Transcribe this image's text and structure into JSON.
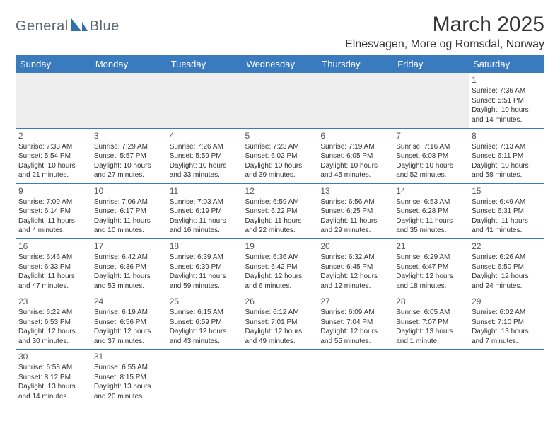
{
  "logo": {
    "brand_left": "General",
    "brand_right": "Blue",
    "text_color": "#5a6770",
    "icon_color": "#2f6fab"
  },
  "title": "March 2025",
  "location": "Elnesvagen, More og Romsdal, Norway",
  "header_bg": "#3a7bbf",
  "days": [
    "Sunday",
    "Monday",
    "Tuesday",
    "Wednesday",
    "Thursday",
    "Friday",
    "Saturday"
  ],
  "startOffset": 6,
  "cells": [
    {
      "n": 1,
      "sr": "7:36 AM",
      "ss": "5:51 PM",
      "dl": "10 hours and 14 minutes."
    },
    {
      "n": 2,
      "sr": "7:33 AM",
      "ss": "5:54 PM",
      "dl": "10 hours and 21 minutes."
    },
    {
      "n": 3,
      "sr": "7:29 AM",
      "ss": "5:57 PM",
      "dl": "10 hours and 27 minutes."
    },
    {
      "n": 4,
      "sr": "7:26 AM",
      "ss": "5:59 PM",
      "dl": "10 hours and 33 minutes."
    },
    {
      "n": 5,
      "sr": "7:23 AM",
      "ss": "6:02 PM",
      "dl": "10 hours and 39 minutes."
    },
    {
      "n": 6,
      "sr": "7:19 AM",
      "ss": "6:05 PM",
      "dl": "10 hours and 45 minutes."
    },
    {
      "n": 7,
      "sr": "7:16 AM",
      "ss": "6:08 PM",
      "dl": "10 hours and 52 minutes."
    },
    {
      "n": 8,
      "sr": "7:13 AM",
      "ss": "6:11 PM",
      "dl": "10 hours and 58 minutes."
    },
    {
      "n": 9,
      "sr": "7:09 AM",
      "ss": "6:14 PM",
      "dl": "11 hours and 4 minutes."
    },
    {
      "n": 10,
      "sr": "7:06 AM",
      "ss": "6:17 PM",
      "dl": "11 hours and 10 minutes."
    },
    {
      "n": 11,
      "sr": "7:03 AM",
      "ss": "6:19 PM",
      "dl": "11 hours and 16 minutes."
    },
    {
      "n": 12,
      "sr": "6:59 AM",
      "ss": "6:22 PM",
      "dl": "11 hours and 22 minutes."
    },
    {
      "n": 13,
      "sr": "6:56 AM",
      "ss": "6:25 PM",
      "dl": "11 hours and 29 minutes."
    },
    {
      "n": 14,
      "sr": "6:53 AM",
      "ss": "6:28 PM",
      "dl": "11 hours and 35 minutes."
    },
    {
      "n": 15,
      "sr": "6:49 AM",
      "ss": "6:31 PM",
      "dl": "11 hours and 41 minutes."
    },
    {
      "n": 16,
      "sr": "6:46 AM",
      "ss": "6:33 PM",
      "dl": "11 hours and 47 minutes."
    },
    {
      "n": 17,
      "sr": "6:42 AM",
      "ss": "6:36 PM",
      "dl": "11 hours and 53 minutes."
    },
    {
      "n": 18,
      "sr": "6:39 AM",
      "ss": "6:39 PM",
      "dl": "11 hours and 59 minutes."
    },
    {
      "n": 19,
      "sr": "6:36 AM",
      "ss": "6:42 PM",
      "dl": "12 hours and 6 minutes."
    },
    {
      "n": 20,
      "sr": "6:32 AM",
      "ss": "6:45 PM",
      "dl": "12 hours and 12 minutes."
    },
    {
      "n": 21,
      "sr": "6:29 AM",
      "ss": "6:47 PM",
      "dl": "12 hours and 18 minutes."
    },
    {
      "n": 22,
      "sr": "6:26 AM",
      "ss": "6:50 PM",
      "dl": "12 hours and 24 minutes."
    },
    {
      "n": 23,
      "sr": "6:22 AM",
      "ss": "6:53 PM",
      "dl": "12 hours and 30 minutes."
    },
    {
      "n": 24,
      "sr": "6:19 AM",
      "ss": "6:56 PM",
      "dl": "12 hours and 37 minutes."
    },
    {
      "n": 25,
      "sr": "6:15 AM",
      "ss": "6:59 PM",
      "dl": "12 hours and 43 minutes."
    },
    {
      "n": 26,
      "sr": "6:12 AM",
      "ss": "7:01 PM",
      "dl": "12 hours and 49 minutes."
    },
    {
      "n": 27,
      "sr": "6:09 AM",
      "ss": "7:04 PM",
      "dl": "12 hours and 55 minutes."
    },
    {
      "n": 28,
      "sr": "6:05 AM",
      "ss": "7:07 PM",
      "dl": "13 hours and 1 minute."
    },
    {
      "n": 29,
      "sr": "6:02 AM",
      "ss": "7:10 PM",
      "dl": "13 hours and 7 minutes."
    },
    {
      "n": 30,
      "sr": "6:58 AM",
      "ss": "8:12 PM",
      "dl": "13 hours and 14 minutes."
    },
    {
      "n": 31,
      "sr": "6:55 AM",
      "ss": "8:15 PM",
      "dl": "13 hours and 20 minutes."
    }
  ],
  "labels": {
    "sunrise": "Sunrise:",
    "sunset": "Sunset:",
    "daylight": "Daylight:"
  }
}
